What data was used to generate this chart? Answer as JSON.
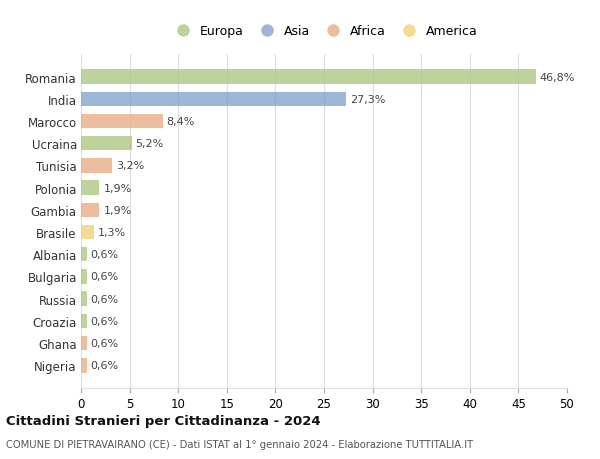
{
  "countries": [
    "Romania",
    "India",
    "Marocco",
    "Ucraina",
    "Tunisia",
    "Polonia",
    "Gambia",
    "Brasile",
    "Albania",
    "Bulgaria",
    "Russia",
    "Croazia",
    "Ghana",
    "Nigeria"
  ],
  "values": [
    46.8,
    27.3,
    8.4,
    5.2,
    3.2,
    1.9,
    1.9,
    1.3,
    0.6,
    0.6,
    0.6,
    0.6,
    0.6,
    0.6
  ],
  "labels": [
    "46,8%",
    "27,3%",
    "8,4%",
    "5,2%",
    "3,2%",
    "1,9%",
    "1,9%",
    "1,3%",
    "0,6%",
    "0,6%",
    "0,6%",
    "0,6%",
    "0,6%",
    "0,6%"
  ],
  "continent": [
    "Europa",
    "Asia",
    "Africa",
    "Europa",
    "Africa",
    "Europa",
    "Africa",
    "America",
    "Europa",
    "Europa",
    "Europa",
    "Europa",
    "Africa",
    "Africa"
  ],
  "colors": {
    "Europa": "#a8c57a",
    "Asia": "#7b9fcc",
    "Africa": "#e8a87c",
    "America": "#f0d070"
  },
  "legend_order": [
    "Europa",
    "Asia",
    "Africa",
    "America"
  ],
  "xlim": [
    0,
    50
  ],
  "xticks": [
    0,
    5,
    10,
    15,
    20,
    25,
    30,
    35,
    40,
    45,
    50
  ],
  "title": "Cittadini Stranieri per Cittadinanza - 2024",
  "subtitle": "COMUNE DI PIETRAVAIRANO (CE) - Dati ISTAT al 1° gennaio 2024 - Elaborazione TUTTITALIA.IT",
  "bg_color": "#ffffff",
  "grid_color": "#dddddd",
  "bar_alpha": 0.75
}
